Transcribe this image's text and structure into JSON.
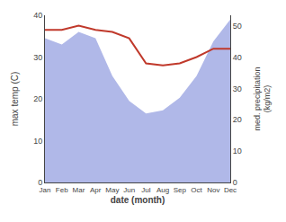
{
  "chart_data": {
    "type": "line",
    "xlabel": "date (month)",
    "ylabel": "max temp (C)",
    "y2label": "med. precipitation\n(kg/m2)",
    "categories": [
      "Jan",
      "Feb",
      "Mar",
      "Apr",
      "May",
      "Jun",
      "Jul",
      "Aug",
      "Sep",
      "Oct",
      "Nov",
      "Dec"
    ],
    "series": [
      {
        "type": "area",
        "axis": "y2",
        "color": "#b0b8e8",
        "values": [
          46,
          44,
          48,
          46,
          34,
          26,
          22,
          23,
          27,
          34,
          45,
          52
        ]
      },
      {
        "type": "line",
        "color": "#c0392b",
        "values": [
          36.5,
          36.5,
          37.5,
          36.5,
          36.0,
          34.5,
          28.5,
          28.0,
          28.5,
          30.0,
          32.0,
          32.0
        ]
      }
    ],
    "ylim": [
      0,
      40
    ],
    "yticks": [
      0,
      10,
      20,
      30,
      40
    ],
    "y2lim": [
      0,
      53.33
    ],
    "y2ticks": [
      0,
      10,
      20,
      30,
      40,
      50
    ],
    "grid": false
  }
}
